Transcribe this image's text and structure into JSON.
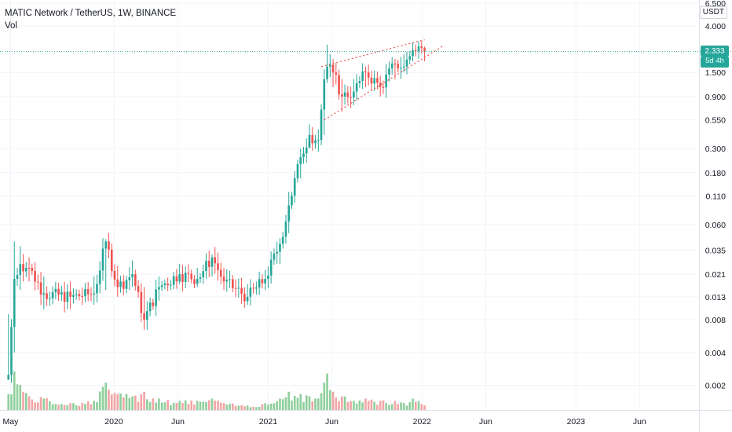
{
  "legend": {
    "symbol_title": "MATIC Network / TetherUS, 1W, BINANCE",
    "indicator": "Vol"
  },
  "price_axis": {
    "currency": "USDT",
    "current_price": "2.333",
    "countdown": "5d 4h"
  },
  "colors": {
    "up": "#26a69a",
    "down": "#ef5350",
    "vol_up": "#8fcf9b",
    "vol_down": "#f2a5a5",
    "trendline": "#ef5350",
    "price_line": "#26a69a",
    "grid": "#f0f3fa"
  },
  "chart_data": {
    "type": "candlestick",
    "y_scale": "log",
    "y_ticks": [
      "6.500",
      "4.000",
      "1.500",
      "0.900",
      "0.550",
      "0.300",
      "0.180",
      "0.110",
      "0.060",
      "0.035",
      "0.021",
      "0.013",
      "0.008",
      "0.004",
      "0.002"
    ],
    "x_ticks": [
      {
        "label": "May",
        "date": "2019-05-01"
      },
      {
        "label": "2020",
        "date": "2020-01-01"
      },
      {
        "label": "Jun",
        "date": "2020-06-01"
      },
      {
        "label": "2021",
        "date": "2021-01-01"
      },
      {
        "label": "Jun",
        "date": "2021-06-01"
      },
      {
        "label": "2022",
        "date": "2022-01-01"
      },
      {
        "label": "Jun",
        "date": "2022-06-01"
      },
      {
        "label": "2023",
        "date": "2023-01-01"
      },
      {
        "label": "Jun",
        "date": "2023-06-01"
      }
    ],
    "x_range": [
      "2019-04-06",
      "2023-10-20"
    ],
    "anchors": [
      {
        "date": "2019-04-26",
        "close": 0.0025,
        "high": 0.009,
        "low": 0.0024,
        "vol": 0.35
      },
      {
        "date": "2019-05-10",
        "close": 0.019,
        "high": 0.042,
        "low": 0.004,
        "vol": 0.85
      },
      {
        "date": "2019-05-24",
        "close": 0.026,
        "high": 0.038,
        "low": 0.015,
        "vol": 0.55
      },
      {
        "date": "2019-06-14",
        "close": 0.024,
        "high": 0.03,
        "low": 0.018,
        "vol": 0.3
      },
      {
        "date": "2019-07-19",
        "close": 0.014,
        "high": 0.02,
        "low": 0.01,
        "vol": 0.25
      },
      {
        "date": "2019-09-20",
        "close": 0.013,
        "high": 0.018,
        "low": 0.01,
        "vol": 0.15
      },
      {
        "date": "2019-11-15",
        "close": 0.014,
        "high": 0.02,
        "low": 0.011,
        "vol": 0.2
      },
      {
        "date": "2019-12-13",
        "close": 0.042,
        "high": 0.044,
        "low": 0.015,
        "vol": 0.6
      },
      {
        "date": "2020-01-10",
        "close": 0.016,
        "high": 0.025,
        "low": 0.013,
        "vol": 0.35
      },
      {
        "date": "2020-02-14",
        "close": 0.021,
        "high": 0.028,
        "low": 0.016,
        "vol": 0.3
      },
      {
        "date": "2020-03-13",
        "close": 0.008,
        "high": 0.016,
        "low": 0.0065,
        "vol": 0.4
      },
      {
        "date": "2020-04-17",
        "close": 0.016,
        "high": 0.02,
        "low": 0.012,
        "vol": 0.25
      },
      {
        "date": "2020-06-05",
        "close": 0.021,
        "high": 0.026,
        "low": 0.017,
        "vol": 0.2
      },
      {
        "date": "2020-07-17",
        "close": 0.019,
        "high": 0.024,
        "low": 0.016,
        "vol": 0.2
      },
      {
        "date": "2020-08-21",
        "close": 0.03,
        "high": 0.032,
        "low": 0.02,
        "vol": 0.25
      },
      {
        "date": "2020-09-18",
        "close": 0.018,
        "high": 0.024,
        "low": 0.015,
        "vol": 0.15
      },
      {
        "date": "2020-11-13",
        "close": 0.013,
        "high": 0.017,
        "low": 0.011,
        "vol": 0.1
      },
      {
        "date": "2020-12-25",
        "close": 0.019,
        "high": 0.023,
        "low": 0.015,
        "vol": 0.15
      },
      {
        "date": "2021-01-29",
        "close": 0.04,
        "high": 0.045,
        "low": 0.026,
        "vol": 0.25
      },
      {
        "date": "2021-02-19",
        "close": 0.09,
        "high": 0.12,
        "low": 0.05,
        "vol": 0.4
      },
      {
        "date": "2021-03-19",
        "close": 0.25,
        "high": 0.3,
        "low": 0.16,
        "vol": 0.35
      },
      {
        "date": "2021-04-09",
        "close": 0.4,
        "high": 0.5,
        "low": 0.3,
        "vol": 0.3
      },
      {
        "date": "2021-04-30",
        "close": 0.36,
        "high": 0.45,
        "low": 0.28,
        "vol": 0.25
      },
      {
        "date": "2021-05-14",
        "close": 1.3,
        "high": 1.6,
        "low": 0.4,
        "vol": 0.6
      },
      {
        "date": "2021-05-21",
        "close": 1.7,
        "high": 2.7,
        "low": 1.2,
        "vol": 0.8
      },
      {
        "date": "2021-06-04",
        "close": 1.5,
        "high": 2.0,
        "low": 1.1,
        "vol": 0.4
      },
      {
        "date": "2021-06-25",
        "close": 0.9,
        "high": 1.3,
        "low": 0.65,
        "vol": 0.3
      },
      {
        "date": "2021-07-23",
        "close": 1.0,
        "high": 1.3,
        "low": 0.75,
        "vol": 0.2
      },
      {
        "date": "2021-08-20",
        "close": 1.5,
        "high": 1.7,
        "low": 1.1,
        "vol": 0.25
      },
      {
        "date": "2021-09-24",
        "close": 1.1,
        "high": 1.4,
        "low": 0.9,
        "vol": 0.2
      },
      {
        "date": "2021-10-29",
        "close": 1.8,
        "high": 2.0,
        "low": 1.3,
        "vol": 0.2
      },
      {
        "date": "2021-11-19",
        "close": 1.7,
        "high": 2.2,
        "low": 1.5,
        "vol": 0.15
      },
      {
        "date": "2021-12-10",
        "close": 2.4,
        "high": 2.8,
        "low": 1.9,
        "vol": 0.25
      },
      {
        "date": "2021-12-24",
        "close": 2.6,
        "high": 2.9,
        "low": 2.0,
        "vol": 0.2
      },
      {
        "date": "2022-01-07",
        "close": 2.333,
        "high": 2.6,
        "low": 1.9,
        "vol": 0.1
      }
    ],
    "trendlines": [
      {
        "from": {
          "date": "2021-05-07",
          "price": 1.7
        },
        "to": {
          "date": "2022-01-07",
          "price": 3.0
        }
      },
      {
        "from": {
          "date": "2021-05-14",
          "price": 0.55
        },
        "to": {
          "date": "2022-02-18",
          "price": 2.6
        }
      }
    ],
    "price_line": 2.333
  }
}
